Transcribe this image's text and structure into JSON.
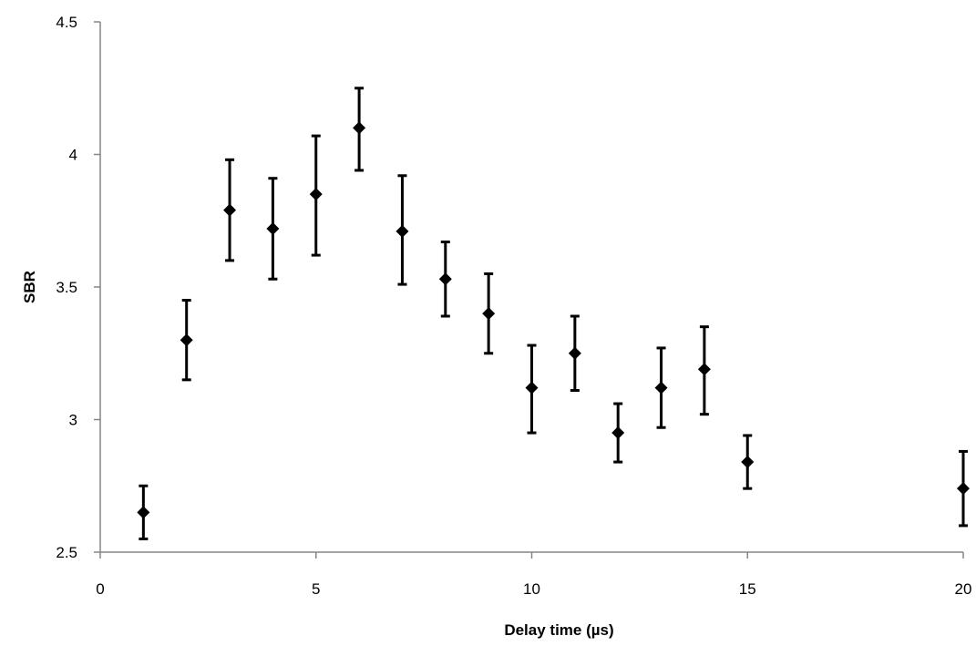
{
  "chart_data": {
    "type": "scatter",
    "title": "",
    "xlabel": "Delay time (µs)",
    "ylabel": "SBR",
    "xlim": [
      0,
      20
    ],
    "ylim": [
      2.5,
      4.5
    ],
    "xticks": [
      0,
      5,
      10,
      15,
      20
    ],
    "yticks": [
      2.5,
      3,
      3.5,
      4,
      4.5
    ],
    "xtick_labels": [
      "0",
      "5",
      "10",
      "15",
      "20"
    ],
    "ytick_labels": [
      "2.5",
      "3",
      "3.5",
      "4",
      "4.5"
    ],
    "grid": false,
    "legend": "none",
    "marker": "diamond",
    "color": "#000000",
    "points": [
      {
        "x": 1,
        "y": 2.65,
        "err_low": 2.55,
        "err_high": 2.75
      },
      {
        "x": 2,
        "y": 3.3,
        "err_low": 3.15,
        "err_high": 3.45
      },
      {
        "x": 3,
        "y": 3.79,
        "err_low": 3.6,
        "err_high": 3.98
      },
      {
        "x": 4,
        "y": 3.72,
        "err_low": 3.53,
        "err_high": 3.91
      },
      {
        "x": 5,
        "y": 3.85,
        "err_low": 3.62,
        "err_high": 4.07
      },
      {
        "x": 6,
        "y": 4.1,
        "err_low": 3.94,
        "err_high": 4.25
      },
      {
        "x": 7,
        "y": 3.71,
        "err_low": 3.51,
        "err_high": 3.92
      },
      {
        "x": 8,
        "y": 3.53,
        "err_low": 3.39,
        "err_high": 3.67
      },
      {
        "x": 9,
        "y": 3.4,
        "err_low": 3.25,
        "err_high": 3.55
      },
      {
        "x": 10,
        "y": 3.12,
        "err_low": 2.95,
        "err_high": 3.28
      },
      {
        "x": 11,
        "y": 3.25,
        "err_low": 3.11,
        "err_high": 3.39
      },
      {
        "x": 12,
        "y": 2.95,
        "err_low": 2.84,
        "err_high": 3.06
      },
      {
        "x": 13,
        "y": 3.12,
        "err_low": 2.97,
        "err_high": 3.27
      },
      {
        "x": 14,
        "y": 3.19,
        "err_low": 3.02,
        "err_high": 3.35
      },
      {
        "x": 15,
        "y": 2.84,
        "err_low": 2.74,
        "err_high": 2.94
      },
      {
        "x": 20,
        "y": 2.74,
        "err_low": 2.6,
        "err_high": 2.88
      }
    ]
  }
}
